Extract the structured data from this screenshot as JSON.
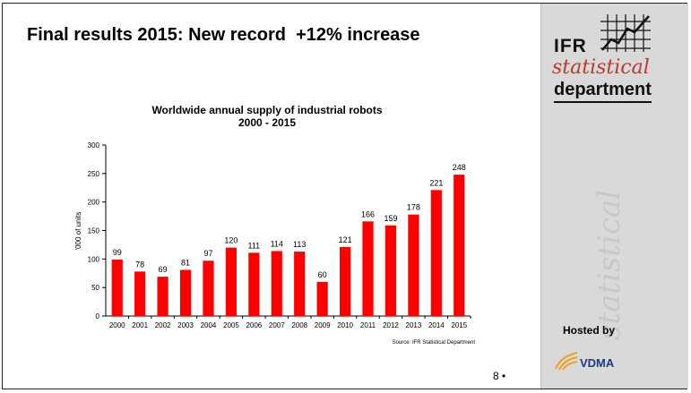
{
  "slide": {
    "title": "Final results 2015: New record  +12% increase",
    "page_number": "8 •",
    "hosted_by": "Hosted by",
    "sponsor": "VDMA"
  },
  "logo": {
    "ifr": "IFR",
    "statistical": "statistical",
    "department": "department",
    "watermark": "statistical"
  },
  "colors": {
    "bar": "#ff0000",
    "accent": "#c0392b",
    "vdma_orange": "#f0a020",
    "vdma_blue": "#1a3c8c"
  },
  "chart_data": {
    "type": "bar",
    "title": "Worldwide annual supply of industrial robots",
    "subtitle": "2000 - 2015",
    "ylabel": "'000 of units",
    "xlabel": "",
    "ylim": [
      0,
      300
    ],
    "yticks": [
      0,
      50,
      100,
      150,
      200,
      250,
      300
    ],
    "categories": [
      "2000",
      "2001",
      "2002",
      "2003",
      "2004",
      "2005",
      "2006",
      "2007",
      "2008",
      "2009",
      "2010",
      "2011",
      "2012",
      "2013",
      "2014",
      "2015"
    ],
    "values": [
      99,
      78,
      69,
      81,
      97,
      120,
      111,
      114,
      113,
      60,
      121,
      166,
      159,
      178,
      221,
      248
    ],
    "source": "Source: IFR Statistical Department",
    "grid": false,
    "legend": "none"
  }
}
